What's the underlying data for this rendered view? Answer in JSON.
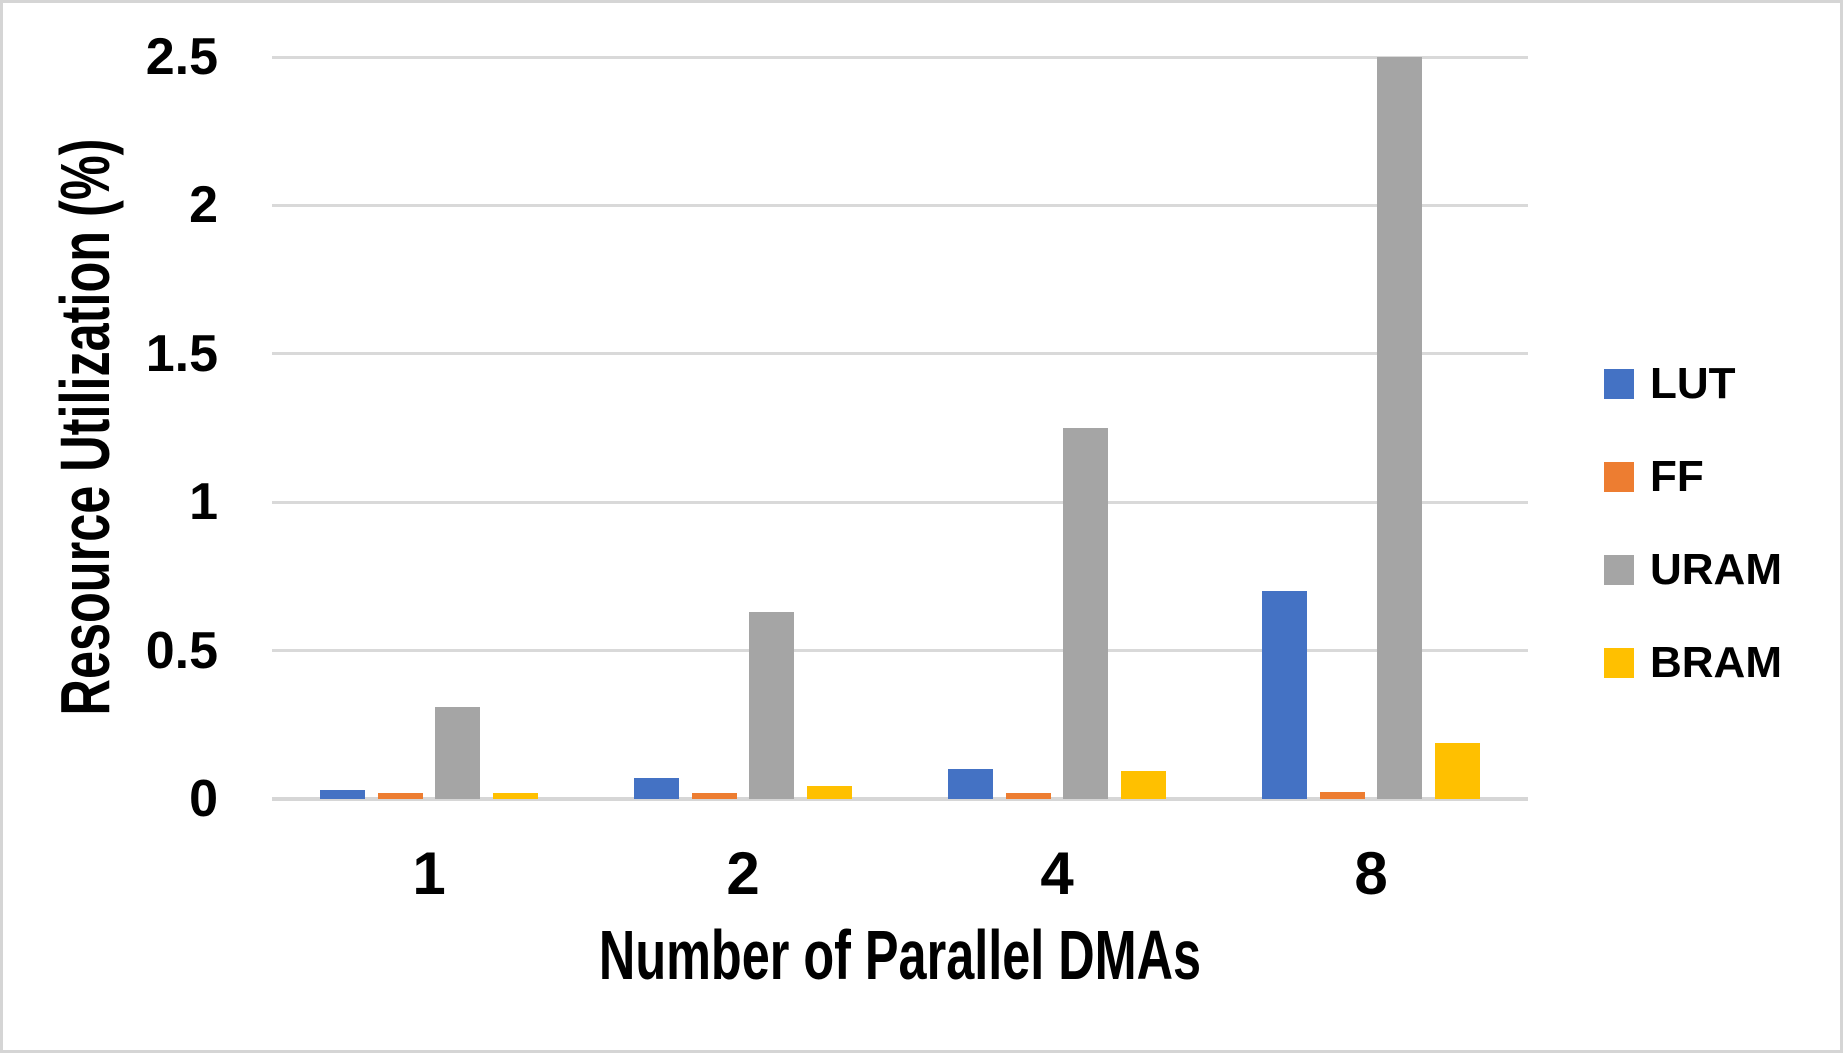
{
  "chart_data": {
    "type": "bar",
    "title": "",
    "xlabel": "Number of Parallel DMAs",
    "ylabel": "Resource Utilization (%)",
    "categories": [
      "1",
      "2",
      "4",
      "8"
    ],
    "series": [
      {
        "name": "LUT",
        "color": "#4472C4",
        "values": [
          0.03,
          0.07,
          0.1,
          0.7
        ]
      },
      {
        "name": "FF",
        "color": "#ED7D31",
        "values": [
          0.02,
          0.02,
          0.02,
          0.025
        ]
      },
      {
        "name": "URAM",
        "color": "#A5A5A5",
        "values": [
          0.31,
          0.63,
          1.25,
          2.5
        ]
      },
      {
        "name": "BRAM",
        "color": "#FFC000",
        "values": [
          0.02,
          0.045,
          0.095,
          0.19
        ]
      }
    ],
    "ylim": [
      0,
      2.5
    ],
    "yticks": [
      {
        "value": 0,
        "label": "0"
      },
      {
        "value": 0.5,
        "label": "0.5"
      },
      {
        "value": 1,
        "label": "1"
      },
      {
        "value": 1.5,
        "label": "1.5"
      },
      {
        "value": 2,
        "label": "2"
      },
      {
        "value": 2.5,
        "label": "2.5"
      }
    ],
    "grid": "horizontal",
    "legend_position": "right",
    "legend": [
      "LUT",
      "FF",
      "URAM",
      "BRAM"
    ]
  },
  "colors": {
    "background": "#FFFFFF",
    "frame_border": "#D5D5D5",
    "gridline": "#D9D9D9",
    "axis_line": "#D6D6D6",
    "text": "#000000"
  }
}
